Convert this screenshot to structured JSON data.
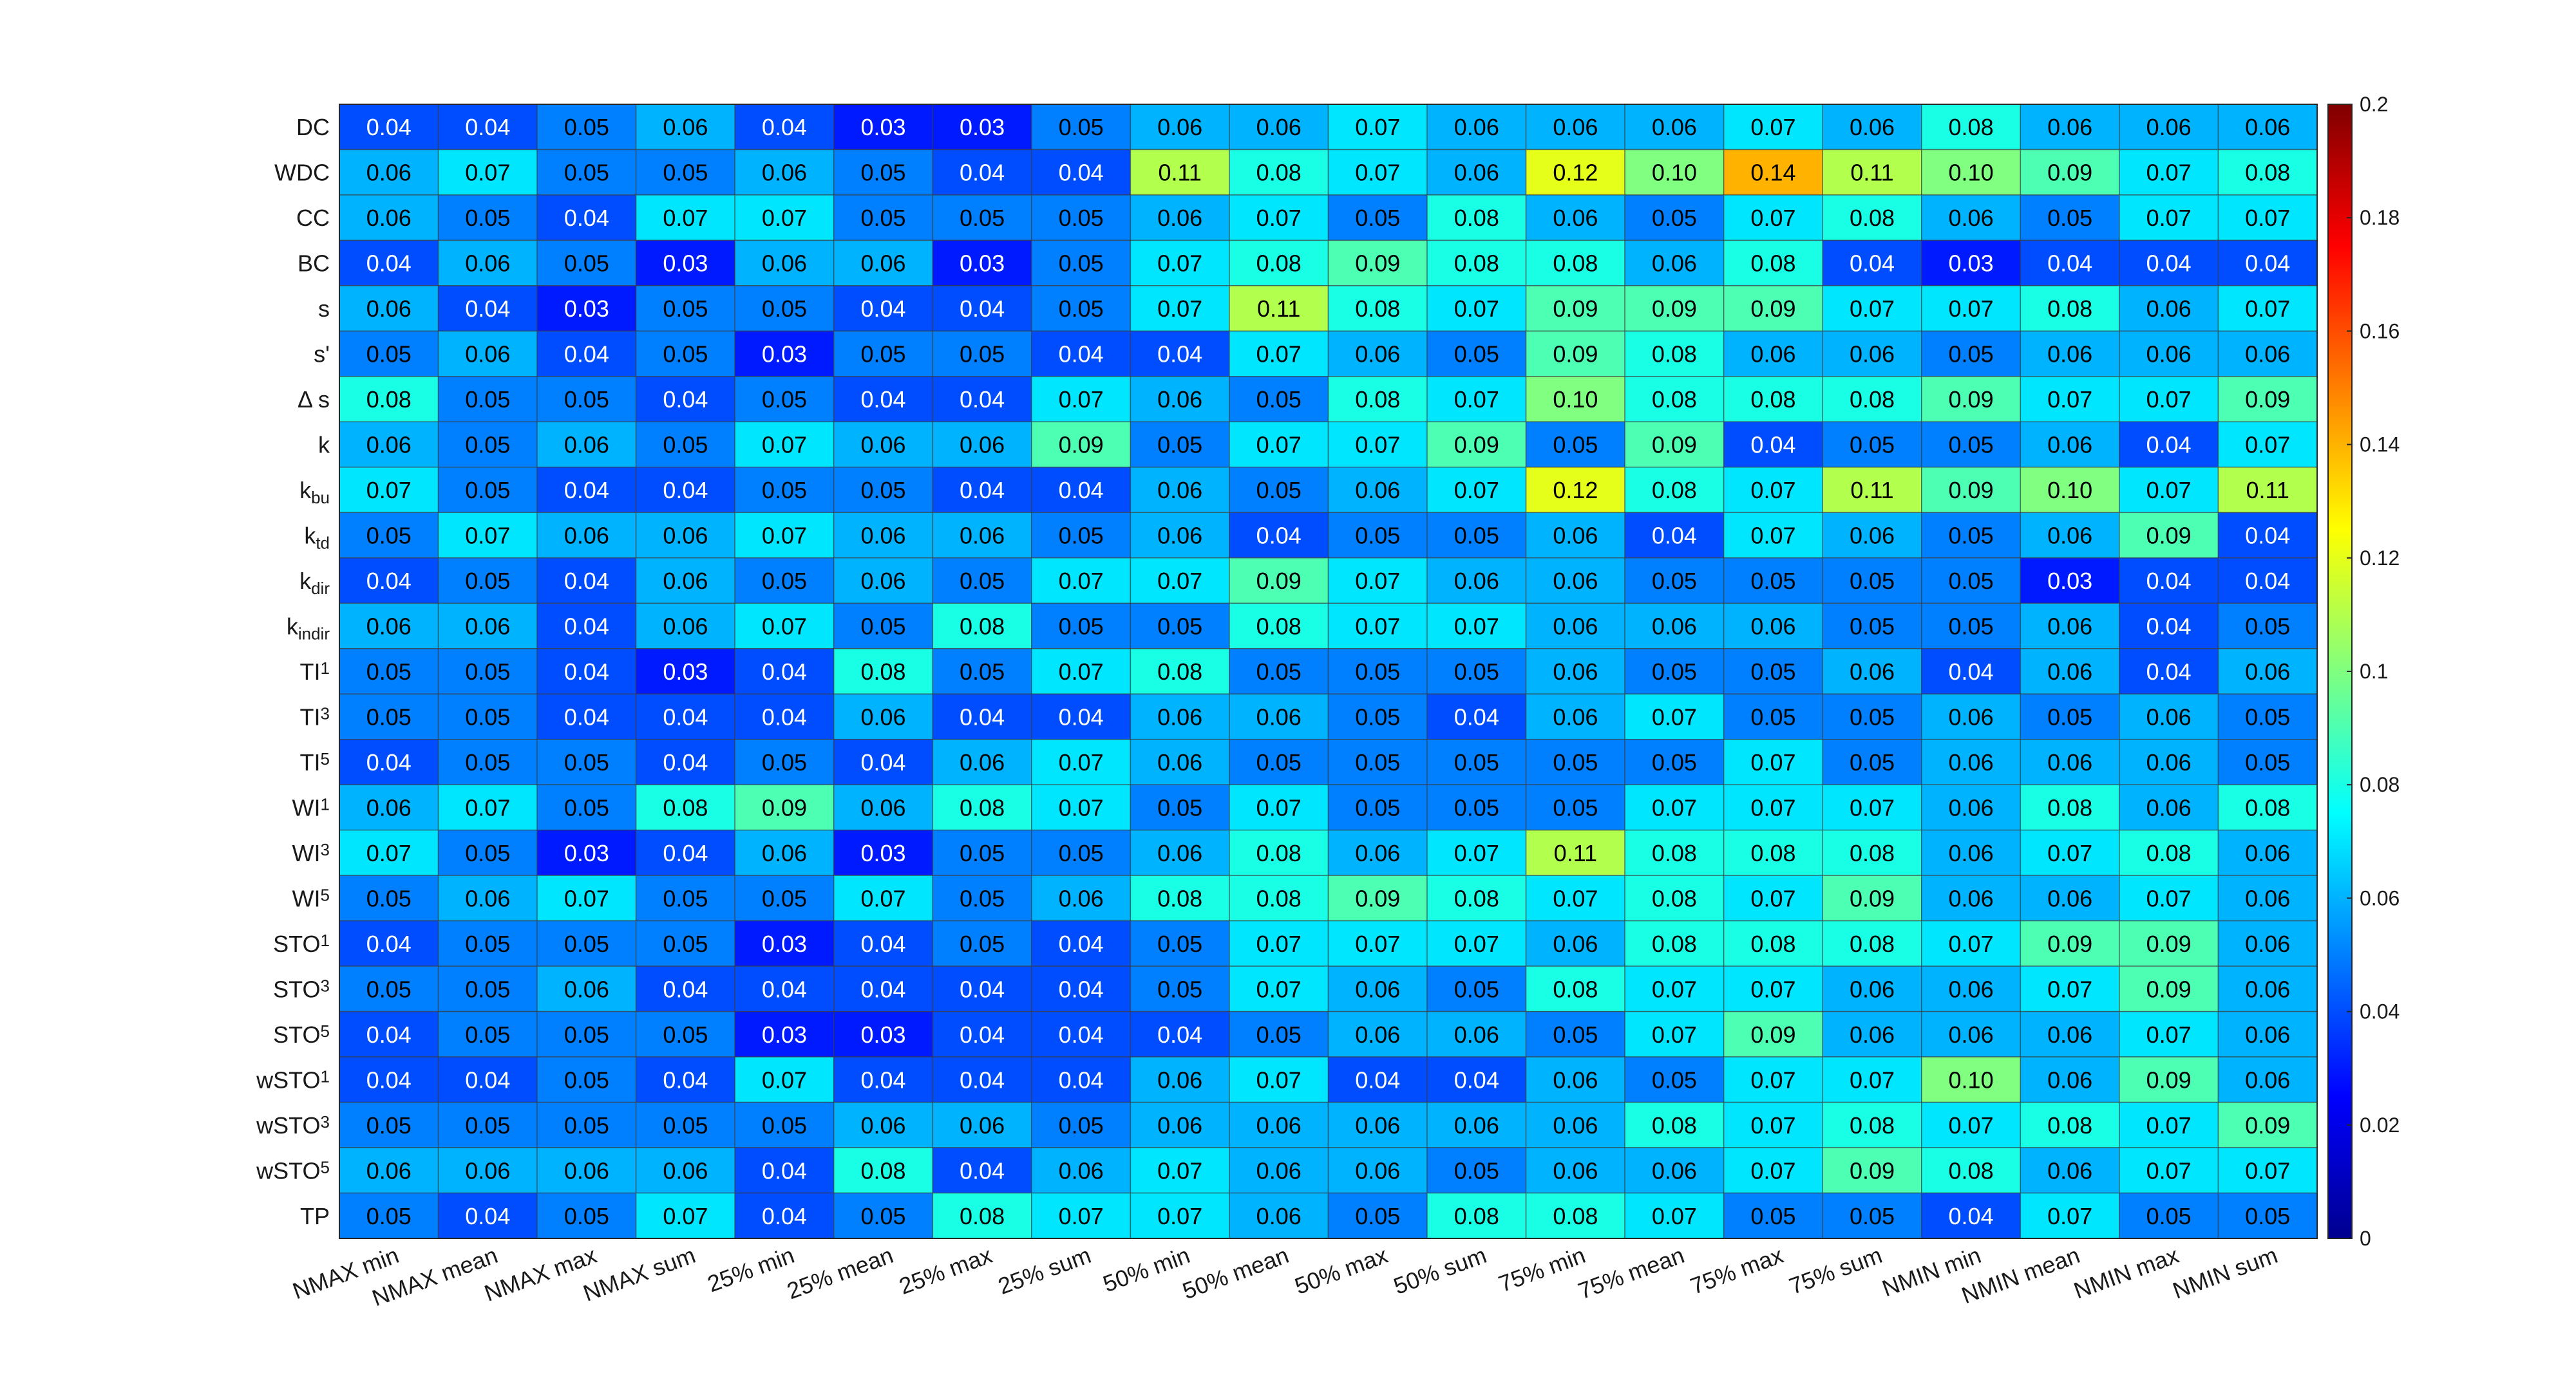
{
  "chart_data": {
    "type": "heatmap",
    "title": "",
    "xlabel": "",
    "ylabel": "",
    "columns": [
      "NMAX min",
      "NMAX mean",
      "NMAX max",
      "NMAX sum",
      "25% min",
      "25% mean",
      "25% max",
      "25% sum",
      "50% min",
      "50% mean",
      "50% max",
      "50% sum",
      "75% min",
      "75% mean",
      "75% max",
      "75% sum",
      "NMIN min",
      "NMIN mean",
      "NMIN max",
      "NMIN sum"
    ],
    "rows": [
      {
        "base": "DC",
        "sup": "",
        "sub": ""
      },
      {
        "base": "WDC",
        "sup": "",
        "sub": ""
      },
      {
        "base": "CC",
        "sup": "",
        "sub": ""
      },
      {
        "base": "BC",
        "sup": "",
        "sub": ""
      },
      {
        "base": "s",
        "sup": "",
        "sub": ""
      },
      {
        "base": "s'",
        "sup": "",
        "sub": ""
      },
      {
        "base": "Δ s",
        "sup": "",
        "sub": ""
      },
      {
        "base": "k",
        "sup": "",
        "sub": ""
      },
      {
        "base": "k",
        "sup": "",
        "sub": "bu"
      },
      {
        "base": "k",
        "sup": "",
        "sub": "td"
      },
      {
        "base": "k",
        "sup": "",
        "sub": "dir"
      },
      {
        "base": "k",
        "sup": "",
        "sub": "indir"
      },
      {
        "base": "TI",
        "sup": "1",
        "sub": ""
      },
      {
        "base": "TI",
        "sup": "3",
        "sub": ""
      },
      {
        "base": "TI",
        "sup": "5",
        "sub": ""
      },
      {
        "base": "WI",
        "sup": "1",
        "sub": ""
      },
      {
        "base": "WI",
        "sup": "3",
        "sub": ""
      },
      {
        "base": "WI",
        "sup": "5",
        "sub": ""
      },
      {
        "base": "STO",
        "sup": "1",
        "sub": ""
      },
      {
        "base": "STO",
        "sup": "3",
        "sub": ""
      },
      {
        "base": "STO",
        "sup": "5",
        "sub": ""
      },
      {
        "base": "wSTO",
        "sup": "1",
        "sub": ""
      },
      {
        "base": "wSTO",
        "sup": "3",
        "sub": ""
      },
      {
        "base": "wSTO",
        "sup": "5",
        "sub": ""
      },
      {
        "base": "TP",
        "sup": "",
        "sub": ""
      }
    ],
    "values": [
      [
        0.04,
        0.04,
        0.05,
        0.06,
        0.04,
        0.03,
        0.03,
        0.05,
        0.06,
        0.06,
        0.07,
        0.06,
        0.06,
        0.06,
        0.07,
        0.06,
        0.08,
        0.06,
        0.06,
        0.06
      ],
      [
        0.06,
        0.07,
        0.05,
        0.05,
        0.06,
        0.05,
        0.04,
        0.04,
        0.11,
        0.08,
        0.07,
        0.06,
        0.12,
        0.1,
        0.14,
        0.11,
        0.1,
        0.09,
        0.07,
        0.08
      ],
      [
        0.06,
        0.05,
        0.04,
        0.07,
        0.07,
        0.05,
        0.05,
        0.05,
        0.06,
        0.07,
        0.05,
        0.08,
        0.06,
        0.05,
        0.07,
        0.08,
        0.06,
        0.05,
        0.07,
        0.07
      ],
      [
        0.04,
        0.06,
        0.05,
        0.03,
        0.06,
        0.06,
        0.03,
        0.05,
        0.07,
        0.08,
        0.09,
        0.08,
        0.08,
        0.06,
        0.08,
        0.04,
        0.03,
        0.04,
        0.04,
        0.04
      ],
      [
        0.06,
        0.04,
        0.03,
        0.05,
        0.05,
        0.04,
        0.04,
        0.05,
        0.07,
        0.11,
        0.08,
        0.07,
        0.09,
        0.09,
        0.09,
        0.07,
        0.07,
        0.08,
        0.06,
        0.07
      ],
      [
        0.05,
        0.06,
        0.04,
        0.05,
        0.03,
        0.05,
        0.05,
        0.04,
        0.04,
        0.07,
        0.06,
        0.05,
        0.09,
        0.08,
        0.06,
        0.06,
        0.05,
        0.06,
        0.06,
        0.06
      ],
      [
        0.08,
        0.05,
        0.05,
        0.04,
        0.05,
        0.04,
        0.04,
        0.07,
        0.06,
        0.05,
        0.08,
        0.07,
        0.1,
        0.08,
        0.08,
        0.08,
        0.09,
        0.07,
        0.07,
        0.09
      ],
      [
        0.06,
        0.05,
        0.06,
        0.05,
        0.07,
        0.06,
        0.06,
        0.09,
        0.05,
        0.07,
        0.07,
        0.09,
        0.05,
        0.09,
        0.04,
        0.05,
        0.05,
        0.06,
        0.04,
        0.07
      ],
      [
        0.07,
        0.05,
        0.04,
        0.04,
        0.05,
        0.05,
        0.04,
        0.04,
        0.06,
        0.05,
        0.06,
        0.07,
        0.12,
        0.08,
        0.07,
        0.11,
        0.09,
        0.1,
        0.07,
        0.11
      ],
      [
        0.05,
        0.07,
        0.06,
        0.06,
        0.07,
        0.06,
        0.06,
        0.05,
        0.06,
        0.04,
        0.05,
        0.05,
        0.06,
        0.04,
        0.07,
        0.06,
        0.05,
        0.06,
        0.09,
        0.04
      ],
      [
        0.04,
        0.05,
        0.04,
        0.06,
        0.05,
        0.06,
        0.05,
        0.07,
        0.07,
        0.09,
        0.07,
        0.06,
        0.06,
        0.05,
        0.05,
        0.05,
        0.05,
        0.03,
        0.04,
        0.04
      ],
      [
        0.06,
        0.06,
        0.04,
        0.06,
        0.07,
        0.05,
        0.08,
        0.05,
        0.05,
        0.08,
        0.07,
        0.07,
        0.06,
        0.06,
        0.06,
        0.05,
        0.05,
        0.06,
        0.04,
        0.05
      ],
      [
        0.05,
        0.05,
        0.04,
        0.03,
        0.04,
        0.08,
        0.05,
        0.07,
        0.08,
        0.05,
        0.05,
        0.05,
        0.06,
        0.05,
        0.05,
        0.06,
        0.04,
        0.06,
        0.04,
        0.06
      ],
      [
        0.05,
        0.05,
        0.04,
        0.04,
        0.04,
        0.06,
        0.04,
        0.04,
        0.06,
        0.06,
        0.05,
        0.04,
        0.06,
        0.07,
        0.05,
        0.05,
        0.06,
        0.05,
        0.06,
        0.05
      ],
      [
        0.04,
        0.05,
        0.05,
        0.04,
        0.05,
        0.04,
        0.06,
        0.07,
        0.06,
        0.05,
        0.05,
        0.05,
        0.05,
        0.05,
        0.07,
        0.05,
        0.06,
        0.06,
        0.06,
        0.05
      ],
      [
        0.06,
        0.07,
        0.05,
        0.08,
        0.09,
        0.06,
        0.08,
        0.07,
        0.05,
        0.07,
        0.05,
        0.05,
        0.05,
        0.07,
        0.07,
        0.07,
        0.06,
        0.08,
        0.06,
        0.08
      ],
      [
        0.07,
        0.05,
        0.03,
        0.04,
        0.06,
        0.03,
        0.05,
        0.05,
        0.06,
        0.08,
        0.06,
        0.07,
        0.11,
        0.08,
        0.08,
        0.08,
        0.06,
        0.07,
        0.08,
        0.06
      ],
      [
        0.05,
        0.06,
        0.07,
        0.05,
        0.05,
        0.07,
        0.05,
        0.06,
        0.08,
        0.08,
        0.09,
        0.08,
        0.07,
        0.08,
        0.07,
        0.09,
        0.06,
        0.06,
        0.07,
        0.06
      ],
      [
        0.04,
        0.05,
        0.05,
        0.05,
        0.03,
        0.04,
        0.05,
        0.04,
        0.05,
        0.07,
        0.07,
        0.07,
        0.06,
        0.08,
        0.08,
        0.08,
        0.07,
        0.09,
        0.09,
        0.06
      ],
      [
        0.05,
        0.05,
        0.06,
        0.04,
        0.04,
        0.04,
        0.04,
        0.04,
        0.05,
        0.07,
        0.06,
        0.05,
        0.08,
        0.07,
        0.07,
        0.06,
        0.06,
        0.07,
        0.09,
        0.06
      ],
      [
        0.04,
        0.05,
        0.05,
        0.05,
        0.03,
        0.03,
        0.04,
        0.04,
        0.04,
        0.05,
        0.06,
        0.06,
        0.05,
        0.07,
        0.09,
        0.06,
        0.06,
        0.06,
        0.07,
        0.06
      ],
      [
        0.04,
        0.04,
        0.05,
        0.04,
        0.07,
        0.04,
        0.04,
        0.04,
        0.06,
        0.07,
        0.04,
        0.04,
        0.06,
        0.05,
        0.07,
        0.07,
        0.1,
        0.06,
        0.09,
        0.06
      ],
      [
        0.05,
        0.05,
        0.05,
        0.05,
        0.05,
        0.06,
        0.06,
        0.05,
        0.06,
        0.06,
        0.06,
        0.06,
        0.06,
        0.08,
        0.07,
        0.08,
        0.07,
        0.08,
        0.07,
        0.09
      ],
      [
        0.06,
        0.06,
        0.06,
        0.06,
        0.04,
        0.08,
        0.04,
        0.06,
        0.07,
        0.06,
        0.06,
        0.05,
        0.06,
        0.06,
        0.07,
        0.09,
        0.08,
        0.06,
        0.07,
        0.07
      ],
      [
        0.05,
        0.04,
        0.05,
        0.07,
        0.04,
        0.05,
        0.08,
        0.07,
        0.07,
        0.06,
        0.05,
        0.08,
        0.08,
        0.07,
        0.05,
        0.05,
        0.04,
        0.07,
        0.05,
        0.05
      ]
    ],
    "colorbar": {
      "colormap": "jet",
      "range": [
        0,
        0.2
      ],
      "ticks": [
        "0",
        "0.02",
        "0.04",
        "0.06",
        "0.08",
        "0.1",
        "0.12",
        "0.14",
        "0.16",
        "0.18",
        "0.2"
      ]
    }
  }
}
